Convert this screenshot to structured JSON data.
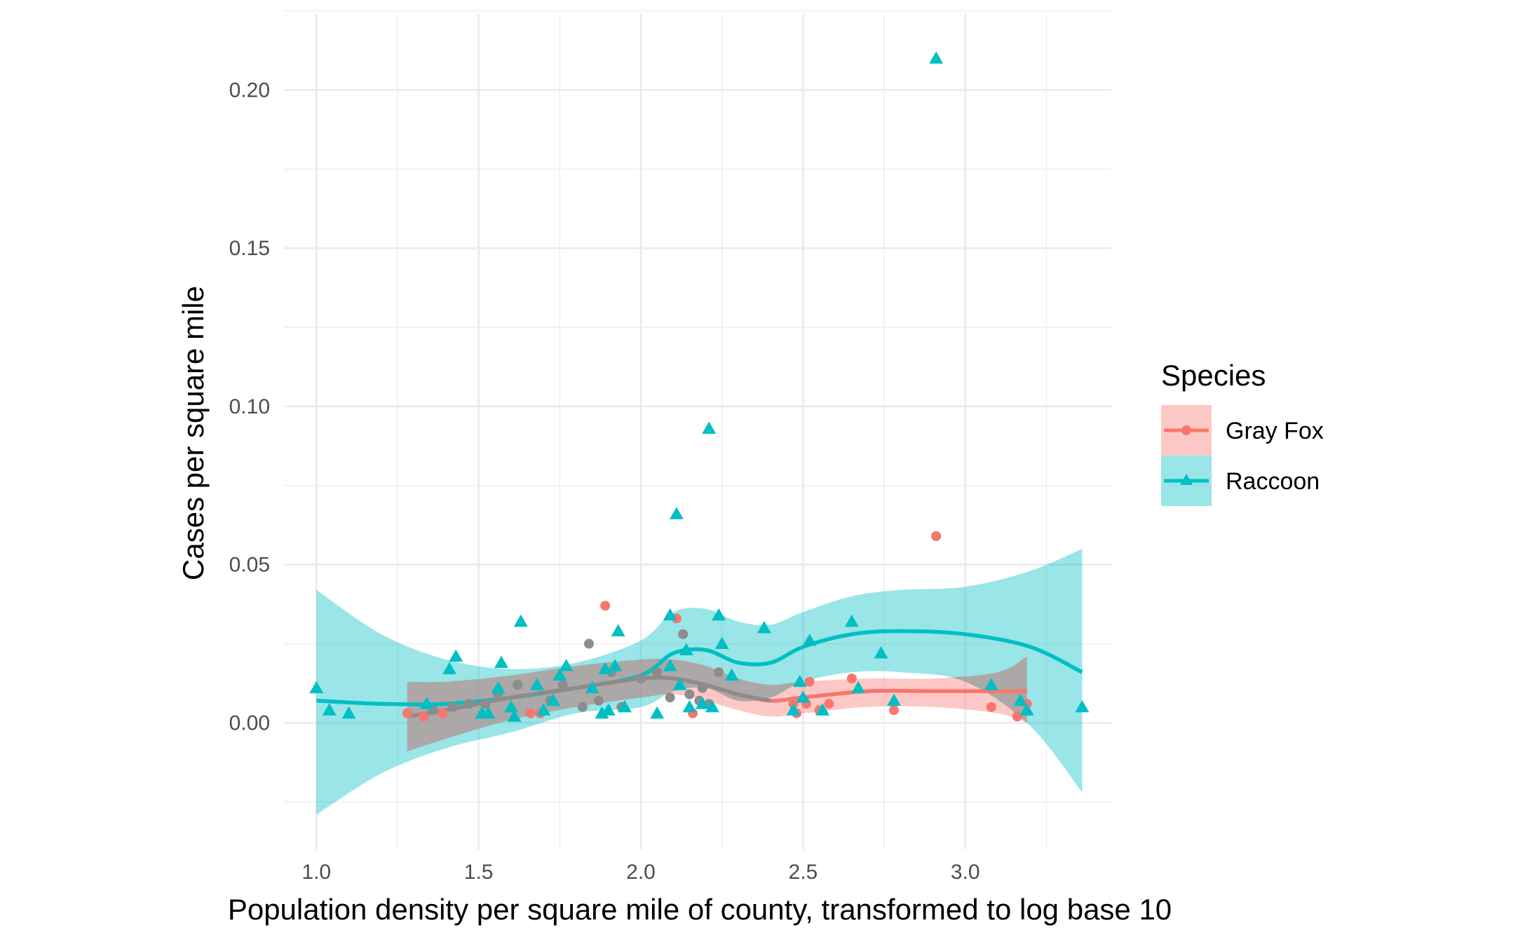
{
  "chart_data": {
    "type": "scatter",
    "title": "",
    "xlabel": "Population density per square mile of county, transformed to log base 10",
    "ylabel": "Cases per square mile",
    "xlim": [
      0.9,
      3.45
    ],
    "ylim": [
      -0.04,
      0.224
    ],
    "x_ticks": [
      1.0,
      1.5,
      2.0,
      2.5,
      3.0
    ],
    "x_tick_labels": [
      "1.0",
      "1.5",
      "2.0",
      "2.5",
      "3.0"
    ],
    "y_ticks": [
      0.0,
      0.05,
      0.1,
      0.15,
      0.2
    ],
    "y_tick_labels": [
      "0.00",
      "0.05",
      "0.10",
      "0.15",
      "0.20"
    ],
    "grid": true,
    "legend": {
      "title": "Species",
      "position": "right",
      "entries": [
        "Gray Fox",
        "Raccoon"
      ]
    },
    "colors": {
      "gray_fox": "#F8766D",
      "raccoon": "#00BFC4",
      "gray_fox_band": "#F8766D",
      "raccoon_band": "#00BFC4",
      "overlap_band": "#9a9a9a",
      "overlap_line": "#8c8c8c",
      "grid": "#ebebeb"
    },
    "series": [
      {
        "name": "Gray Fox",
        "marker": "circle",
        "points": [
          [
            1.28,
            0.003
          ],
          [
            1.33,
            0.002
          ],
          [
            1.36,
            0.004
          ],
          [
            1.39,
            0.003
          ],
          [
            1.42,
            0.005
          ],
          [
            1.47,
            0.006
          ],
          [
            1.52,
            0.006
          ],
          [
            1.56,
            0.009
          ],
          [
            1.62,
            0.012
          ],
          [
            1.66,
            0.003
          ],
          [
            1.69,
            0.003
          ],
          [
            1.72,
            0.007
          ],
          [
            1.76,
            0.012
          ],
          [
            1.82,
            0.005
          ],
          [
            1.84,
            0.025
          ],
          [
            1.87,
            0.007
          ],
          [
            1.89,
            0.037
          ],
          [
            1.91,
            0.016
          ],
          [
            1.94,
            0.005
          ],
          [
            2.0,
            0.014
          ],
          [
            2.05,
            0.016
          ],
          [
            2.09,
            0.008
          ],
          [
            2.11,
            0.033
          ],
          [
            2.13,
            0.028
          ],
          [
            2.15,
            0.009
          ],
          [
            2.16,
            0.003
          ],
          [
            2.18,
            0.007
          ],
          [
            2.19,
            0.011
          ],
          [
            2.21,
            0.006
          ],
          [
            2.24,
            0.016
          ],
          [
            2.47,
            0.006
          ],
          [
            2.48,
            0.003
          ],
          [
            2.51,
            0.006
          ],
          [
            2.52,
            0.013
          ],
          [
            2.55,
            0.004
          ],
          [
            2.58,
            0.006
          ],
          [
            2.65,
            0.014
          ],
          [
            2.78,
            0.004
          ],
          [
            2.91,
            0.059
          ],
          [
            3.08,
            0.005
          ],
          [
            3.16,
            0.002
          ],
          [
            3.19,
            0.006
          ]
        ],
        "smooth": [
          [
            1.28,
            0.002
          ],
          [
            1.4,
            0.004
          ],
          [
            1.6,
            0.008
          ],
          [
            1.8,
            0.011
          ],
          [
            2.0,
            0.014
          ],
          [
            2.1,
            0.014
          ],
          [
            2.2,
            0.012
          ],
          [
            2.3,
            0.009
          ],
          [
            2.4,
            0.007
          ],
          [
            2.5,
            0.008
          ],
          [
            2.7,
            0.01
          ],
          [
            2.9,
            0.01
          ],
          [
            3.1,
            0.01
          ],
          [
            3.19,
            0.01
          ]
        ],
        "band_upper": [
          [
            1.28,
            0.013
          ],
          [
            1.4,
            0.013
          ],
          [
            1.6,
            0.015
          ],
          [
            1.8,
            0.018
          ],
          [
            2.0,
            0.02
          ],
          [
            2.1,
            0.02
          ],
          [
            2.2,
            0.018
          ],
          [
            2.3,
            0.014
          ],
          [
            2.4,
            0.012
          ],
          [
            2.5,
            0.013
          ],
          [
            2.7,
            0.014
          ],
          [
            2.9,
            0.014
          ],
          [
            3.1,
            0.016
          ],
          [
            3.19,
            0.021
          ]
        ],
        "band_lower": [
          [
            1.28,
            -0.009
          ],
          [
            1.4,
            -0.005
          ],
          [
            1.6,
            0.001
          ],
          [
            1.8,
            0.005
          ],
          [
            2.0,
            0.008
          ],
          [
            2.1,
            0.009
          ],
          [
            2.2,
            0.007
          ],
          [
            2.3,
            0.004
          ],
          [
            2.4,
            0.002
          ],
          [
            2.5,
            0.003
          ],
          [
            2.7,
            0.005
          ],
          [
            2.9,
            0.005
          ],
          [
            3.1,
            0.003
          ],
          [
            3.19,
            0.0
          ]
        ]
      },
      {
        "name": "Raccoon",
        "marker": "triangle",
        "points": [
          [
            1.0,
            0.011
          ],
          [
            1.04,
            0.004
          ],
          [
            1.1,
            0.003
          ],
          [
            1.34,
            0.006
          ],
          [
            1.41,
            0.017
          ],
          [
            1.43,
            0.021
          ],
          [
            1.51,
            0.003
          ],
          [
            1.53,
            0.003
          ],
          [
            1.56,
            0.011
          ],
          [
            1.57,
            0.019
          ],
          [
            1.6,
            0.005
          ],
          [
            1.61,
            0.002
          ],
          [
            1.63,
            0.032
          ],
          [
            1.68,
            0.012
          ],
          [
            1.7,
            0.004
          ],
          [
            1.73,
            0.007
          ],
          [
            1.75,
            0.015
          ],
          [
            1.77,
            0.018
          ],
          [
            1.85,
            0.011
          ],
          [
            1.88,
            0.003
          ],
          [
            1.89,
            0.017
          ],
          [
            1.9,
            0.004
          ],
          [
            1.92,
            0.018
          ],
          [
            1.93,
            0.029
          ],
          [
            1.95,
            0.005
          ],
          [
            2.05,
            0.003
          ],
          [
            2.09,
            0.018
          ],
          [
            2.09,
            0.034
          ],
          [
            2.11,
            0.066
          ],
          [
            2.12,
            0.012
          ],
          [
            2.14,
            0.023
          ],
          [
            2.15,
            0.005
          ],
          [
            2.19,
            0.006
          ],
          [
            2.21,
            0.093
          ],
          [
            2.22,
            0.005
          ],
          [
            2.24,
            0.034
          ],
          [
            2.25,
            0.025
          ],
          [
            2.28,
            0.015
          ],
          [
            2.38,
            0.03
          ],
          [
            2.47,
            0.004
          ],
          [
            2.49,
            0.013
          ],
          [
            2.5,
            0.008
          ],
          [
            2.52,
            0.026
          ],
          [
            2.56,
            0.004
          ],
          [
            2.65,
            0.032
          ],
          [
            2.67,
            0.011
          ],
          [
            2.74,
            0.022
          ],
          [
            2.78,
            0.007
          ],
          [
            2.91,
            0.21
          ],
          [
            3.08,
            0.012
          ],
          [
            3.17,
            0.007
          ],
          [
            3.19,
            0.004
          ],
          [
            3.36,
            0.005
          ]
        ],
        "smooth": [
          [
            1.0,
            0.007
          ],
          [
            1.2,
            0.006
          ],
          [
            1.4,
            0.006
          ],
          [
            1.6,
            0.008
          ],
          [
            1.8,
            0.011
          ],
          [
            2.0,
            0.015
          ],
          [
            2.1,
            0.022
          ],
          [
            2.2,
            0.023
          ],
          [
            2.3,
            0.019
          ],
          [
            2.4,
            0.019
          ],
          [
            2.5,
            0.024
          ],
          [
            2.65,
            0.028
          ],
          [
            2.8,
            0.029
          ],
          [
            3.0,
            0.028
          ],
          [
            3.2,
            0.024
          ],
          [
            3.36,
            0.016
          ]
        ],
        "band_upper": [
          [
            1.0,
            0.042
          ],
          [
            1.2,
            0.028
          ],
          [
            1.4,
            0.02
          ],
          [
            1.6,
            0.017
          ],
          [
            1.8,
            0.019
          ],
          [
            2.0,
            0.026
          ],
          [
            2.1,
            0.035
          ],
          [
            2.2,
            0.036
          ],
          [
            2.3,
            0.032
          ],
          [
            2.4,
            0.031
          ],
          [
            2.5,
            0.035
          ],
          [
            2.65,
            0.04
          ],
          [
            2.8,
            0.042
          ],
          [
            3.0,
            0.043
          ],
          [
            3.2,
            0.048
          ],
          [
            3.36,
            0.055
          ]
        ],
        "band_lower": [
          [
            1.0,
            -0.029
          ],
          [
            1.2,
            -0.016
          ],
          [
            1.4,
            -0.008
          ],
          [
            1.6,
            -0.003
          ],
          [
            1.8,
            0.003
          ],
          [
            2.0,
            0.005
          ],
          [
            2.1,
            0.01
          ],
          [
            2.2,
            0.011
          ],
          [
            2.3,
            0.007
          ],
          [
            2.4,
            0.008
          ],
          [
            2.5,
            0.013
          ],
          [
            2.65,
            0.016
          ],
          [
            2.8,
            0.016
          ],
          [
            3.0,
            0.013
          ],
          [
            3.2,
            -0.001
          ],
          [
            3.36,
            -0.022
          ]
        ]
      }
    ]
  }
}
